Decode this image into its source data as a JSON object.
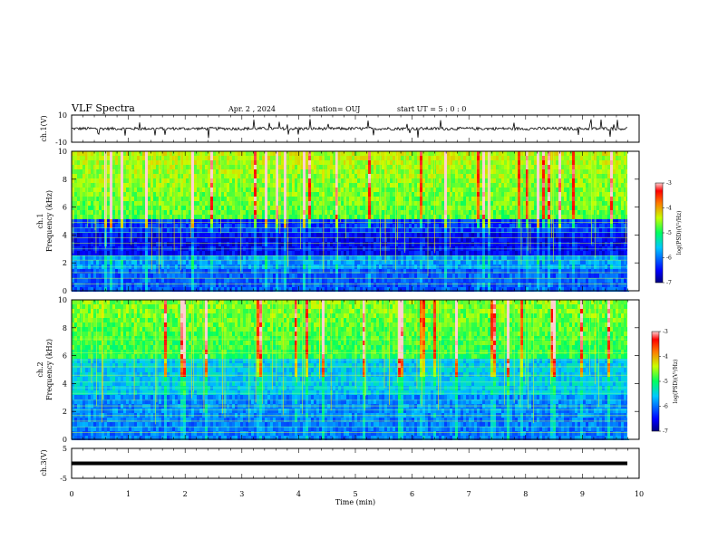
{
  "header": {
    "title": "VLF Spectra",
    "date": "Apr. 2  , 2024",
    "station": "station= OUJ",
    "start": "start  UT  =   5 : 0  : 0"
  },
  "chart_data": [
    {
      "type": "line",
      "id": "ch1_waveform",
      "ylabel": "ch.1(V)",
      "ylim": [
        -10,
        10
      ],
      "y_ticks": [
        "10",
        "-10"
      ],
      "baseline": 0,
      "xlim": [
        0,
        10
      ]
    },
    {
      "type": "heatmap",
      "id": "ch1_spectrogram",
      "ylabel": "ch.1\nFrequency (kHz)",
      "ylim": [
        0,
        10
      ],
      "y_ticks": [
        "0",
        "2",
        "4",
        "6",
        "8",
        "10"
      ],
      "xlim": [
        0,
        10
      ],
      "data_end_min": 9.8,
      "colorbar": {
        "label": "log(PSD)(V²/Hz)",
        "range": [
          -7,
          -3
        ],
        "ticks": [
          "-3",
          "-4",
          "-5",
          "-6",
          "-7"
        ]
      }
    },
    {
      "type": "heatmap",
      "id": "ch2_spectrogram",
      "ylabel": "ch.2\nFrequency (kHz)",
      "ylim": [
        0,
        10
      ],
      "y_ticks": [
        "0",
        "2",
        "4",
        "6",
        "8",
        "10"
      ],
      "xlim": [
        0,
        10
      ],
      "data_end_min": 9.8,
      "colorbar": {
        "label": "log(PSD)(V²/Hz)",
        "range": [
          -7,
          -3
        ],
        "ticks": [
          "-3",
          "-4",
          "-5",
          "-6",
          "-7"
        ]
      }
    },
    {
      "type": "line",
      "id": "ch3_waveform",
      "ylabel": "ch.3(V)",
      "ylim": [
        -5,
        5
      ],
      "y_ticks": [
        "5",
        "0",
        "-5"
      ],
      "baseline": 0,
      "xlim": [
        0,
        10
      ]
    }
  ],
  "x_axis": {
    "label": "Time  (min)",
    "ticks": [
      "0",
      "1",
      "2",
      "3",
      "4",
      "5",
      "6",
      "7",
      "8",
      "9",
      "10"
    ],
    "range": [
      0,
      10
    ]
  }
}
